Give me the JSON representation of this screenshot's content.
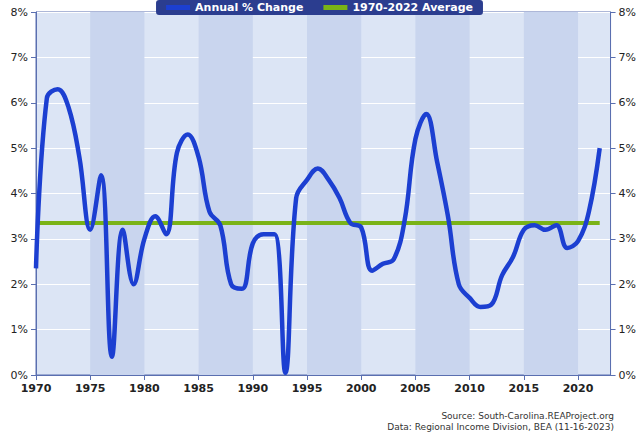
{
  "chart_data": {
    "type": "line",
    "x": [
      1970,
      1971,
      1972,
      1973,
      1974,
      1975,
      1976,
      1977,
      1978,
      1979,
      1980,
      1981,
      1982,
      1983,
      1984,
      1985,
      1986,
      1987,
      1988,
      1989,
      1990,
      1991,
      1992,
      1993,
      1994,
      1995,
      1996,
      1997,
      1998,
      1999,
      2000,
      2001,
      2002,
      2003,
      2004,
      2005,
      2006,
      2007,
      2008,
      2009,
      2010,
      2011,
      2012,
      2013,
      2014,
      2015,
      2016,
      2017,
      2018,
      2019,
      2020,
      2021,
      2022
    ],
    "series": [
      {
        "name": "Annual % Change",
        "color": "#1c3fd1",
        "values": [
          2.35,
          6.1,
          6.3,
          5.9,
          4.8,
          3.2,
          4.4,
          0.4,
          3.2,
          2.0,
          3.0,
          3.5,
          3.1,
          4.9,
          5.3,
          4.8,
          3.6,
          3.3,
          2.0,
          1.9,
          2.9,
          3.1,
          3.1,
          0.05,
          3.9,
          4.3,
          4.55,
          4.3,
          3.9,
          3.35,
          3.25,
          2.3,
          2.45,
          2.55,
          3.4,
          5.2,
          5.75,
          4.7,
          3.5,
          2.0,
          1.7,
          1.5,
          1.55,
          2.2,
          2.6,
          3.2,
          3.3,
          3.2,
          3.3,
          2.8,
          2.95,
          3.6,
          5.0
        ]
      },
      {
        "name": "1970-2022 Average",
        "color": "#7ab317",
        "values": [
          3.35,
          3.35,
          3.35,
          3.35,
          3.35,
          3.35,
          3.35,
          3.35,
          3.35,
          3.35,
          3.35,
          3.35,
          3.35,
          3.35,
          3.35,
          3.35,
          3.35,
          3.35,
          3.35,
          3.35,
          3.35,
          3.35,
          3.35,
          3.35,
          3.35,
          3.35,
          3.35,
          3.35,
          3.35,
          3.35,
          3.35,
          3.35,
          3.35,
          3.35,
          3.35,
          3.35,
          3.35,
          3.35,
          3.35,
          3.35,
          3.35,
          3.35,
          3.35,
          3.35,
          3.35,
          3.35,
          3.35,
          3.35,
          3.35,
          3.35,
          3.35,
          3.35,
          3.35
        ]
      }
    ],
    "xlim": [
      1970,
      2023
    ],
    "xticks": [
      1970,
      1975,
      1980,
      1985,
      1990,
      1995,
      2000,
      2005,
      2010,
      2015,
      2020
    ],
    "ylim": [
      0,
      8
    ],
    "yticks": [
      {
        "value": 0,
        "label": "0%"
      },
      {
        "value": 1,
        "label": "1%"
      },
      {
        "value": 2,
        "label": "2%"
      },
      {
        "value": 3,
        "label": "3%"
      },
      {
        "value": 4,
        "label": "4%"
      },
      {
        "value": 5,
        "label": "5%"
      },
      {
        "value": 6,
        "label": "6%"
      },
      {
        "value": 7,
        "label": "7%"
      },
      {
        "value": 8,
        "label": "8%"
      }
    ],
    "y2lim": [
      0,
      8
    ],
    "y2ticks": [
      {
        "value": 0,
        "label": "0%"
      },
      {
        "value": 1,
        "label": "1%"
      },
      {
        "value": 2,
        "label": "2%"
      },
      {
        "value": 3,
        "label": "3%"
      },
      {
        "value": 4,
        "label": "4%"
      },
      {
        "value": 5,
        "label": "5%"
      },
      {
        "value": 6,
        "label": "6%"
      },
      {
        "value": 7,
        "label": "7%"
      },
      {
        "value": 8,
        "label": "8%"
      }
    ],
    "grid": true,
    "legend": "top",
    "annotations": [
      "Source: South-Carolina.REAProject.org",
      "Data: Regional Income Division, BEA (11-16-2023)"
    ]
  }
}
